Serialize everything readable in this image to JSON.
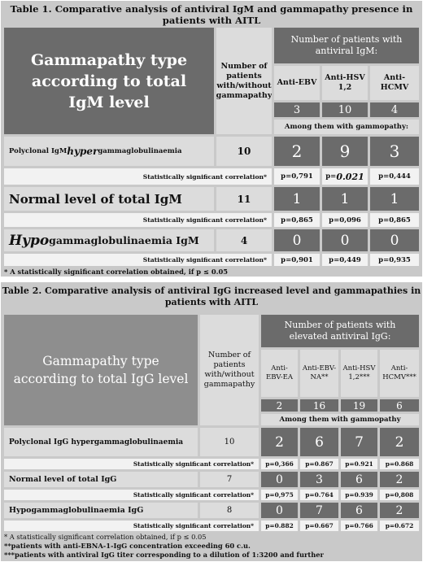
{
  "table1": {
    "title": "Table 1. Comparative analysis of antiviral IgM and gammapathy presence in patients with AITL",
    "col_type_header": "Gammapathy type according to total IgM level",
    "col_n_header": "Number of patients with/without gammapathy",
    "group_header": "Number of patients with antiviral IgM:",
    "col_labels": [
      "Anti-EBV",
      "Anti-HSV 1,2",
      "Anti-HCMV"
    ],
    "totals": [
      "3",
      "10",
      "4"
    ],
    "subheader": "Among them with gammopathy:",
    "rows": [
      {
        "prefix": "Polyclonal IgM ",
        "em": "hyper",
        "suffix": "gammaglobulinaemia",
        "n": "10",
        "values": [
          "2",
          "9",
          "3"
        ],
        "sig_label": "Statistically significant correlation*",
        "p": [
          "p=0,791",
          "p=0.021",
          "p=0,444"
        ]
      },
      {
        "prefix": "Normal level of total IgM",
        "em": "",
        "suffix": "",
        "n": "11",
        "values": [
          "1",
          "1",
          "1"
        ],
        "sig_label": "Statistically significant correlation*",
        "p": [
          "p=0,865",
          "p=0,096",
          "p=0,865"
        ]
      },
      {
        "prefix": "",
        "em": "Hypo",
        "suffix": "gammaglobulinaemia IgM",
        "n": "4",
        "values": [
          "0",
          "0",
          "0"
        ],
        "sig_label": "Statistically significant correlation*",
        "p": [
          "p=0,901",
          "p=0,449",
          "p=0,935"
        ]
      }
    ],
    "footnote": "* A statistically significant correlation obtained, if p ≤ 0.05"
  },
  "table2": {
    "title": "Table 2. Comparative analysis of antiviral IgG increased level and gammapathies in patients with AITL",
    "col_type_header": "Gammapathy type according to total IgG level",
    "col_n_header": "Number of patients with/without gammapathy",
    "group_header": "Number of patients with elevated antiviral IgG:",
    "col_labels": [
      "Anti-EBV-EA",
      "Anti-EBV-NA**",
      "Anti-HSV 1,2***",
      "Anti-HCMV***"
    ],
    "totals": [
      "2",
      "16",
      "19",
      "6"
    ],
    "subheader": "Among them with gammopathy",
    "rows": [
      {
        "label": "Polyclonal IgG hypergammaglobulinaemia",
        "n": "10",
        "values": [
          "2",
          "6",
          "7",
          "2"
        ],
        "sig_label": "Statistically significant correlation*",
        "p": [
          "p=0,366",
          "p=0.867",
          "p=0.921",
          "p=0.868"
        ]
      },
      {
        "label": "Normal level of total IgG",
        "n": "7",
        "values": [
          "0",
          "3",
          "6",
          "2"
        ],
        "sig_label": "Statistically significant correlation*",
        "p": [
          "p=0,975",
          "p=0.764",
          "p=0.939",
          "p=0,808"
        ]
      },
      {
        "label": "Hypogammaglobulinaemia IgG",
        "n": "8",
        "values": [
          "0",
          "7",
          "6",
          "2"
        ],
        "sig_label": "Statistically significant correlation*",
        "p": [
          "p=0.882",
          "p=0.667",
          "p=0.766",
          "p=0.672"
        ]
      }
    ],
    "footnotes": [
      "* A statistically significant correlation obtained, if p ≤ 0.05",
      "**patients with anti-EBNA-1-IgG concentration exceeding 60 c.u.",
      "***patients with antiviral IgG titer corresponding to a dilution of 1:3200 and further"
    ]
  }
}
